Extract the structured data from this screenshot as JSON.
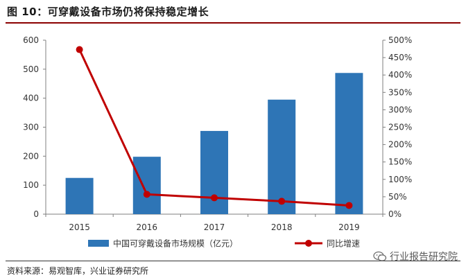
{
  "figure": {
    "title": "图 10：可穿戴设备市场仍将保持稳定增长",
    "source": "资料来源：易观智库，兴业证券研究所",
    "watermark": "行业报告研究院"
  },
  "colors": {
    "bar": "#2e75b6",
    "line": "#c00000",
    "axis": "#7f7f7f",
    "title_rule": "#8b0000"
  },
  "chart_data": {
    "type": "bar",
    "categories": [
      "2015",
      "2016",
      "2017",
      "2018",
      "2019"
    ],
    "series": [
      {
        "name": "中国可穿戴设备市场规模（亿元）",
        "type": "bar",
        "axis": "left",
        "values": [
          125,
          198,
          287,
          395,
          487
        ]
      },
      {
        "name": "同比增速",
        "type": "line",
        "axis": "right",
        "values": [
          473,
          57,
          47,
          37,
          25
        ]
      }
    ],
    "y_left": {
      "ylim": [
        0,
        600
      ],
      "ticks": [
        0,
        100,
        200,
        300,
        400,
        500,
        600
      ]
    },
    "y_right": {
      "ylim": [
        0,
        500
      ],
      "ticks": [
        "0%",
        "50%",
        "100%",
        "150%",
        "200%",
        "250%",
        "300%",
        "350%",
        "400%",
        "450%",
        "500%"
      ]
    },
    "legend_position": "bottom",
    "grid": false
  }
}
